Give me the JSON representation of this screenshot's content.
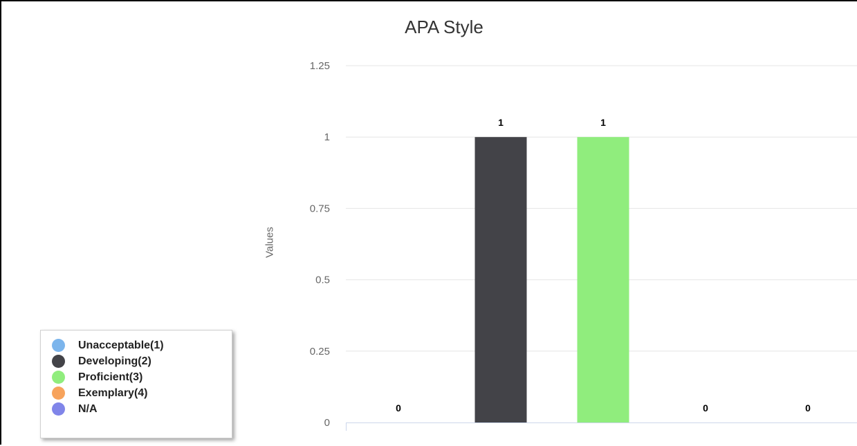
{
  "chart_data": {
    "type": "bar",
    "title": "APA Style",
    "ylabel": "Values",
    "xlabel": "",
    "ylim": [
      0,
      1.25
    ],
    "yticks": [
      "0",
      "0.25",
      "0.5",
      "0.75",
      "1",
      "1.25"
    ],
    "grid": true,
    "legend_position": "bottom-left",
    "categories": [
      "Unacceptable(1)",
      "Developing(2)",
      "Proficient(3)",
      "Exemplary(4)",
      "N/A"
    ],
    "values": [
      0,
      1,
      1,
      0,
      0
    ],
    "data_labels": [
      "0",
      "1",
      "1",
      "0",
      "0"
    ],
    "colors": [
      "#7cb5ec",
      "#434348",
      "#90ed7d",
      "#f7a35c",
      "#8085e9"
    ]
  },
  "legend": {
    "items": [
      {
        "label": "Unacceptable(1)",
        "color": "#7cb5ec"
      },
      {
        "label": "Developing(2)",
        "color": "#434348"
      },
      {
        "label": "Proficient(3)",
        "color": "#90ed7d"
      },
      {
        "label": "Exemplary(4)",
        "color": "#f7a35c"
      },
      {
        "label": "N/A",
        "color": "#8085e9"
      }
    ]
  }
}
